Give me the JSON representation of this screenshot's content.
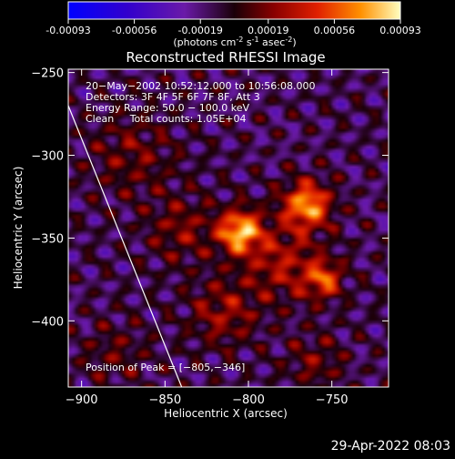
{
  "colorbar": {
    "range": [
      -0.00093,
      0.00093
    ],
    "ticks": [
      {
        "value": -0.00093,
        "label": "-0.00093"
      },
      {
        "value": -0.00056,
        "label": "-0.00056"
      },
      {
        "value": -0.00019,
        "label": "-0.00019"
      },
      {
        "value": 0.00019,
        "label": "0.00019"
      },
      {
        "value": 0.00056,
        "label": "0.00056"
      },
      {
        "value": 0.00093,
        "label": "0.00093"
      }
    ],
    "units_prefix": "(photons cm",
    "units_exp1": "-2",
    "units_mid": " s",
    "units_exp2": "-1",
    "units_mid2": " asec",
    "units_exp3": "-2",
    "units_suffix": ")"
  },
  "chart_data": {
    "type": "heatmap",
    "title": "Reconstructed RHESSI Image",
    "xlabel": "Heliocentric X (arcsec)",
    "ylabel": "Heliocentric Y (arcsec)",
    "xlim": [
      -908,
      -716
    ],
    "ylim": [
      -440,
      -248
    ],
    "xticks": [
      {
        "value": -900,
        "label": "−900"
      },
      {
        "value": -850,
        "label": "−850"
      },
      {
        "value": -800,
        "label": "−800"
      },
      {
        "value": -750,
        "label": "−750"
      }
    ],
    "yticks": [
      {
        "value": -250,
        "label": "−250"
      },
      {
        "value": -300,
        "label": "−300"
      },
      {
        "value": -350,
        "label": "−350"
      },
      {
        "value": -400,
        "label": "−400"
      }
    ],
    "info_lines": [
      "20−May−2002 10:52:12.000 to 10:56:08.000",
      "Detectors: 3F 4F 5F 6F 7F 8F, Att 3",
      "Energy Range: 50.0 − 100.0 keV",
      "Clean     Total counts: 1.05E+04"
    ],
    "peak_label": "Position of Peak = [−805,−346]",
    "peak": [
      -805,
      -346
    ],
    "limb_line": [
      [
        -908,
        -270
      ],
      [
        -840,
        -440
      ]
    ],
    "sources": [
      {
        "x": -805,
        "y": -346,
        "amplitude": 0.00093,
        "sigma": 9
      },
      {
        "x": -765,
        "y": -330,
        "amplitude": 0.00085,
        "sigma": 10
      },
      {
        "x": -755,
        "y": -375,
        "amplitude": 0.0006,
        "sigma": 8
      },
      {
        "x": -780,
        "y": -365,
        "amplitude": 0.0004,
        "sigma": 16
      },
      {
        "x": -815,
        "y": -395,
        "amplitude": 0.00035,
        "sigma": 14
      },
      {
        "x": -870,
        "y": -300,
        "amplitude": 0.00025,
        "sigma": 18
      },
      {
        "x": -840,
        "y": -345,
        "amplitude": 0.0003,
        "sigma": 14
      },
      {
        "x": -760,
        "y": -425,
        "amplitude": 0.00025,
        "sigma": 12
      },
      {
        "x": -880,
        "y": -420,
        "amplitude": 0.0002,
        "sigma": 14
      }
    ]
  },
  "footer": {
    "timestamp": "29-Apr-2022 08:03"
  }
}
